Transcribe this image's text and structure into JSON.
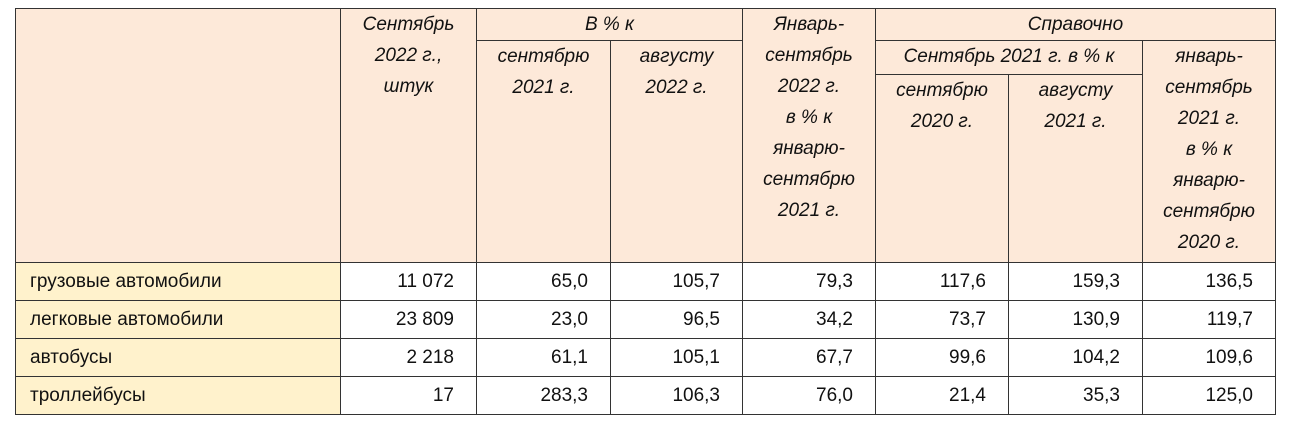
{
  "table": {
    "header": {
      "period": "Сентябрь\n2022 г.,\nштук",
      "pct_group": "В % к",
      "pct_sep": "сентябрю\n2021 г.",
      "pct_aug": "августу\n2022 г.",
      "ytd": "Январь-\nсентябрь\n2022 г.\nв % к\nянварю-\nсентябрю\n2021 г.",
      "ref_group": "Справочно",
      "ref_sub": "Сентябрь 2021 г. в % к",
      "ref_sep": "сентябрю\n2020 г.",
      "ref_aug": "августу\n2021 г.",
      "ref_ytd": "январь-\nсентябрь\n2021 г.\nв % к\nянварю-\nсентябрю\n2020 г."
    },
    "rows": [
      [
        "грузовые автомобили",
        "11 072",
        "65,0",
        "105,7",
        "79,3",
        "117,6",
        "159,3",
        "136,5"
      ],
      [
        "легковые автомобили",
        "23 809",
        "23,0",
        "96,5",
        "34,2",
        "73,7",
        "130,9",
        "119,7"
      ],
      [
        "автобусы",
        "2 218",
        "61,1",
        "105,1",
        "67,7",
        "99,6",
        "104,2",
        "109,6"
      ],
      [
        "троллейбусы",
        "17",
        "283,3",
        "106,3",
        "76,0",
        "21,4",
        "35,3",
        "125,0"
      ]
    ]
  }
}
